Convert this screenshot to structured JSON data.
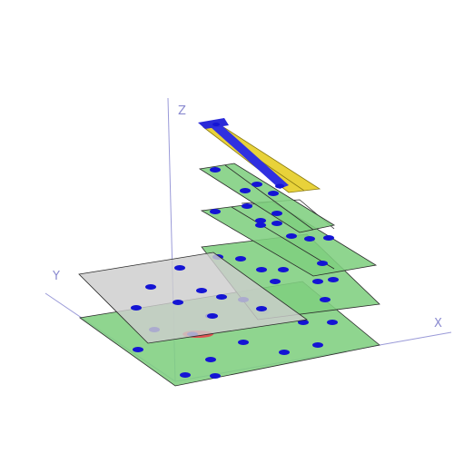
{
  "axes": {
    "x_label": "X",
    "y_label": "Y",
    "z_label": "Z"
  },
  "colors": {
    "plate": "#7fcf7f",
    "gray_plate": "#cdcdcd",
    "dot": "#1414d4",
    "axis": "#9a9ad8",
    "beam_yellow": "#e8d23a",
    "beam_blue": "#3030e0",
    "red_marker": "#e05050"
  },
  "objects": {
    "layers": [
      "base-plate",
      "second-plate",
      "third-plate",
      "fourth-plate",
      "beam"
    ],
    "overlay": "gray-plate",
    "marker": "red-marker"
  }
}
